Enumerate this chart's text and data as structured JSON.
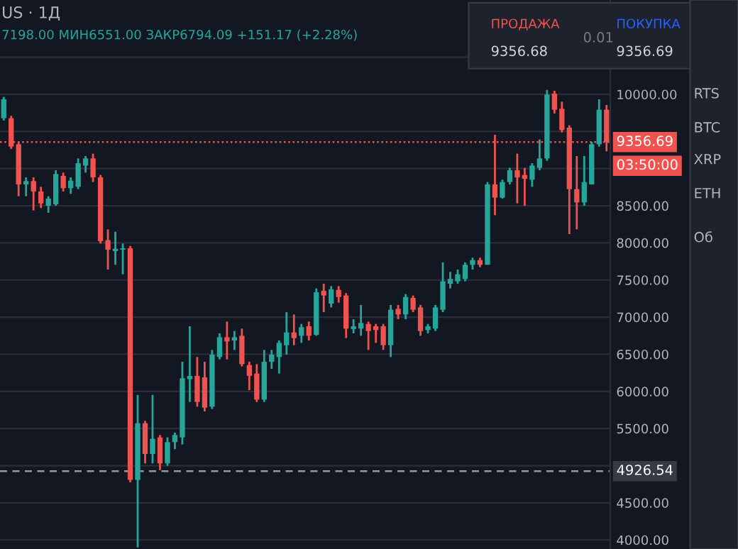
{
  "chart_data": {
    "type": "candlestick",
    "categories": [
      null,
      null,
      null,
      null,
      null,
      null,
      null,
      null,
      null,
      null,
      null,
      null,
      null,
      null,
      null,
      null,
      null,
      null,
      null,
      null,
      null,
      null,
      null,
      null,
      null,
      null,
      null,
      null,
      null,
      null,
      null,
      null,
      null,
      null,
      null,
      null,
      null,
      null,
      null,
      null,
      null,
      null,
      null,
      null,
      null,
      null,
      null,
      null,
      null,
      null,
      null,
      null,
      null,
      null,
      null,
      null,
      null,
      null,
      null,
      null,
      null,
      null,
      null,
      null,
      null,
      null,
      null,
      null,
      null,
      null,
      null,
      null,
      null,
      null,
      null,
      null,
      null,
      null,
      null,
      null,
      null,
      null
    ],
    "ohlc": [
      [
        9678,
        9965,
        9647,
        9933
      ],
      [
        9678,
        9710,
        9265,
        9296
      ],
      [
        9328,
        9360,
        8628,
        8787
      ],
      [
        8787,
        8882,
        8628,
        8832
      ],
      [
        8832,
        8882,
        8437,
        8692
      ],
      [
        8692,
        8755,
        8469,
        8532
      ],
      [
        8500,
        8628,
        8405,
        8596
      ],
      [
        8520,
        8978,
        8500,
        8927
      ],
      [
        8902,
        8946,
        8692,
        8736
      ],
      [
        8736,
        8882,
        8660,
        8838
      ],
      [
        8755,
        9137,
        8723,
        9073
      ],
      [
        9041,
        9169,
        8946,
        9137
      ],
      [
        9137,
        9201,
        8819,
        8882
      ],
      [
        8882,
        8914,
        7991,
        8023
      ],
      [
        8036,
        8182,
        7641,
        7908
      ],
      [
        7889,
        8150,
        7705,
        7921
      ],
      [
        7908,
        7991,
        7577,
        7927
      ],
      [
        7927,
        7959,
        4776,
        4808
      ],
      [
        4808,
        5953,
        3900,
        5572
      ],
      [
        5572,
        5604,
        5031,
        5158
      ],
      [
        5158,
        5953,
        5031,
        5362
      ],
      [
        5381,
        5413,
        4940,
        5031
      ],
      [
        5031,
        5381,
        4999,
        5317
      ],
      [
        5317,
        5445,
        5222,
        5413
      ],
      [
        5381,
        6399,
        5285,
        6177
      ],
      [
        6164,
        6877,
        5859,
        6208
      ],
      [
        6208,
        6463,
        5795,
        5858
      ],
      [
        6189,
        6399,
        5731,
        5782
      ],
      [
        5795,
        6558,
        5763,
        6495
      ],
      [
        6463,
        6781,
        6431,
        6730
      ],
      [
        6730,
        6940,
        6431,
        6673
      ],
      [
        6686,
        6813,
        6558,
        6730
      ],
      [
        6749,
        6845,
        6336,
        6367
      ],
      [
        6354,
        6399,
        6017,
        6208
      ],
      [
        6240,
        6367,
        5858,
        5890
      ],
      [
        5890,
        6558,
        5858,
        6399
      ],
      [
        6399,
        6558,
        6304,
        6495
      ],
      [
        6463,
        6686,
        6240,
        6654
      ],
      [
        6622,
        7068,
        6495,
        6794
      ],
      [
        6794,
        7036,
        6622,
        6718
      ],
      [
        6749,
        6908,
        6654,
        6864
      ],
      [
        6877,
        6940,
        6686,
        6749
      ],
      [
        6762,
        7386,
        6749,
        7335
      ],
      [
        7354,
        7450,
        7068,
        7291
      ],
      [
        7182,
        7418,
        7131,
        7374
      ],
      [
        7367,
        7418,
        7195,
        7271
      ],
      [
        7291,
        7323,
        6718,
        6845
      ],
      [
        6838,
        6972,
        6781,
        6877
      ],
      [
        6845,
        7164,
        6749,
        6921
      ],
      [
        6908,
        6940,
        6559,
        6813
      ],
      [
        6877,
        6908,
        6654,
        6826
      ],
      [
        6877,
        6908,
        6559,
        6622
      ],
      [
        6622,
        7164,
        6463,
        7100
      ],
      [
        7112,
        7164,
        6972,
        7036
      ],
      [
        7036,
        7310,
        6972,
        7271
      ],
      [
        7259,
        7291,
        7068,
        7100
      ],
      [
        7131,
        7164,
        6749,
        6813
      ],
      [
        6826,
        6908,
        6781,
        6877
      ],
      [
        6845,
        7164,
        6813,
        7131
      ],
      [
        7100,
        7737,
        7068,
        7482
      ],
      [
        7450,
        7609,
        7386,
        7514
      ],
      [
        7482,
        7641,
        7450,
        7577
      ],
      [
        7514,
        7737,
        7482,
        7705
      ],
      [
        7705,
        7800,
        7641,
        7768
      ],
      [
        7768,
        7800,
        7673,
        7705
      ],
      [
        7705,
        8819,
        7705,
        8787
      ],
      [
        8787,
        9455,
        8373,
        8609
      ],
      [
        8609,
        8851,
        8596,
        8819
      ],
      [
        8819,
        9010,
        8787,
        8978
      ],
      [
        8978,
        9201,
        8532,
        8882
      ],
      [
        8914,
        9010,
        8500,
        8863
      ],
      [
        8851,
        9073,
        8755,
        9041
      ],
      [
        9010,
        9392,
        8978,
        9137
      ],
      [
        9137,
        10060,
        9105,
        9997
      ],
      [
        10009,
        10047,
        9742,
        9793
      ],
      [
        9806,
        9901,
        9487,
        9519
      ],
      [
        9551,
        9583,
        8118,
        8723
      ],
      [
        8723,
        9169,
        8182,
        8545
      ],
      [
        8545,
        9169,
        8500,
        8819
      ],
      [
        8787,
        9360,
        8787,
        9328
      ],
      [
        9328,
        9933,
        9296,
        9793
      ],
      [
        9793,
        9856,
        9233,
        9357
      ]
    ],
    "colors": [
      "#26a69a",
      "#ef5350",
      "#ef5350",
      "#26a69a",
      "#ef5350",
      "#ef5350",
      "#26a69a",
      "#26a69a",
      "#ef5350",
      "#26a69a",
      "#26a69a",
      "#26a69a",
      "#ef5350",
      "#ef5350",
      "#ef5350",
      "#26a69a",
      "#26a69a",
      "#ef5350",
      "#26a69a",
      "#ef5350",
      "#26a69a",
      "#ef5350",
      "#26a69a",
      "#26a69a",
      "#26a69a",
      "#26a69a",
      "#ef5350",
      "#ef5350",
      "#26a69a",
      "#26a69a",
      "#ef5350",
      "#26a69a",
      "#ef5350",
      "#ef5350",
      "#ef5350",
      "#26a69a",
      "#26a69a",
      "#26a69a",
      "#26a69a",
      "#ef5350",
      "#26a69a",
      "#ef5350",
      "#26a69a",
      "#ef5350",
      "#26a69a",
      "#ef5350",
      "#ef5350",
      "#26a69a",
      "#26a69a",
      "#ef5350",
      "#ef5350",
      "#ef5350",
      "#26a69a",
      "#ef5350",
      "#26a69a",
      "#ef5350",
      "#ef5350",
      "#26a69a",
      "#26a69a",
      "#26a69a",
      "#26a69a",
      "#26a69a",
      "#26a69a",
      "#26a69a",
      "#ef5350",
      "#26a69a",
      "#ef5350",
      "#26a69a",
      "#26a69a",
      "#ef5350",
      "#ef5350",
      "#26a69a",
      "#26a69a",
      "#26a69a",
      "#ef5350",
      "#ef5350",
      "#ef5350",
      "#ef5350",
      "#26a69a",
      "#26a69a",
      "#26a69a",
      "#ef5350"
    ],
    "ylim": [
      3878,
      11270
    ],
    "yticks": [
      {
        "value": 4000,
        "label": "4000.00"
      },
      {
        "value": 4500,
        "label": "4500.00"
      },
      {
        "value": 5000,
        "label": null
      },
      {
        "value": 5500,
        "label": "5500.00"
      },
      {
        "value": 6000,
        "label": "6000.00"
      },
      {
        "value": 6500,
        "label": "6500.00"
      },
      {
        "value": 7000,
        "label": "7000.00"
      },
      {
        "value": 7500,
        "label": "7500.00"
      },
      {
        "value": 8000,
        "label": "8000.00"
      },
      {
        "value": 8500,
        "label": "8500.00"
      },
      {
        "value": 9000,
        "label": null
      },
      {
        "value": 9500,
        "label": null
      },
      {
        "value": 10000,
        "label": "10000.00"
      },
      {
        "value": 10500,
        "label": null
      }
    ],
    "grid": "y",
    "ref_lines": [
      {
        "axis": "y",
        "value": 9356.69,
        "label": "9356.69",
        "color": "#ef5350",
        "line_style": "dotted"
      },
      {
        "axis": "y",
        "value": 4926.54,
        "label": "4926.54",
        "color": "#9598a1",
        "line_style": "dashed"
      }
    ],
    "annotations": [
      "US · 1Д",
      "7198.00 МИН6551.00 ЗАКР6794.09 +151.17 (+2.28%)",
      "ПРОДАЖА",
      "9356.68",
      "0.01",
      "ПОКУПКА",
      "9356.69",
      "03:50:00",
      "RTS",
      "BTC",
      "XRP",
      "ETH",
      "Об"
    ]
  }
}
